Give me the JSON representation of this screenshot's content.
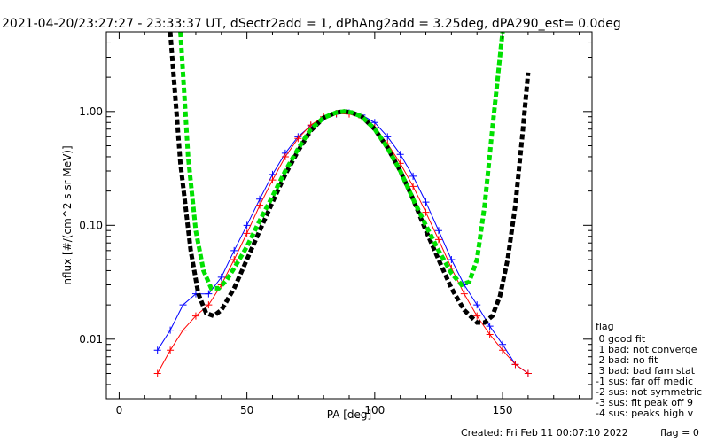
{
  "chart_data": {
    "type": "line",
    "title": "2021-04-20/23:27:27 - 23:33:37 UT, dSectr2add = 1, dPhAng2add = 3.25deg, dPA290_est=    0.0deg",
    "xlabel": "PA [deg]",
    "ylabel": "nflux [#/(cm^2 s sr MeV)]",
    "xlim": [
      -5,
      185
    ],
    "ylim": [
      0.003,
      5.0
    ],
    "yscale": "log",
    "x_ticks": [
      {
        "value": 0,
        "label": "0"
      },
      {
        "value": 50,
        "label": "50"
      },
      {
        "value": 100,
        "label": "100"
      },
      {
        "value": 150,
        "label": "150"
      }
    ],
    "y_ticks": [
      {
        "value": 0.01,
        "label": "0.01"
      },
      {
        "value": 0.1,
        "label": "0.10"
      },
      {
        "value": 1.0,
        "label": "1.00"
      }
    ],
    "grid": false,
    "series": [
      {
        "style": "dashed",
        "color": "#000000",
        "x": [
          20,
          24,
          28,
          31,
          34,
          37,
          40,
          45,
          50,
          55,
          60,
          65,
          70,
          75,
          80,
          85,
          88,
          91,
          95,
          100,
          105,
          110,
          115,
          120,
          125,
          130,
          135,
          140,
          143,
          146,
          149,
          152,
          155,
          158,
          160
        ],
        "y": [
          5.0,
          0.35,
          0.06,
          0.025,
          0.017,
          0.016,
          0.018,
          0.028,
          0.05,
          0.09,
          0.16,
          0.28,
          0.45,
          0.68,
          0.88,
          0.98,
          1.0,
          0.98,
          0.9,
          0.7,
          0.48,
          0.3,
          0.17,
          0.09,
          0.05,
          0.028,
          0.018,
          0.014,
          0.014,
          0.016,
          0.024,
          0.05,
          0.15,
          0.7,
          2.2
        ]
      },
      {
        "style": "dashed",
        "color": "#00e000",
        "x": [
          24,
          27,
          30,
          33,
          36,
          39,
          42,
          45,
          50,
          55,
          60,
          65,
          70,
          75,
          80,
          85,
          88,
          91,
          95,
          100,
          105,
          110,
          115,
          120,
          125,
          130,
          134,
          137,
          140,
          143,
          146,
          150
        ],
        "y": [
          5.0,
          0.4,
          0.09,
          0.04,
          0.028,
          0.028,
          0.033,
          0.042,
          0.065,
          0.11,
          0.18,
          0.3,
          0.47,
          0.7,
          0.88,
          0.98,
          1.0,
          0.98,
          0.9,
          0.7,
          0.48,
          0.3,
          0.17,
          0.1,
          0.06,
          0.038,
          0.03,
          0.032,
          0.05,
          0.15,
          0.7,
          5.0
        ]
      },
      {
        "style": "solid-markers",
        "color": "#0000ff",
        "x": [
          15,
          20,
          25,
          30,
          35,
          40,
          45,
          50,
          55,
          60,
          65,
          70,
          75,
          80,
          85,
          90,
          95,
          100,
          105,
          110,
          115,
          120,
          125,
          130,
          135,
          140,
          145,
          150,
          155,
          160
        ],
        "y": [
          0.008,
          0.012,
          0.02,
          0.025,
          0.025,
          0.035,
          0.06,
          0.1,
          0.17,
          0.28,
          0.43,
          0.6,
          0.75,
          0.88,
          0.95,
          0.97,
          0.93,
          0.8,
          0.6,
          0.42,
          0.27,
          0.16,
          0.09,
          0.05,
          0.03,
          0.02,
          0.013,
          0.009,
          0.006,
          0.005
        ]
      },
      {
        "style": "solid-markers",
        "color": "#ff0000",
        "x": [
          15,
          20,
          25,
          30,
          35,
          40,
          45,
          50,
          55,
          60,
          65,
          70,
          75,
          80,
          85,
          90,
          95,
          100,
          105,
          110,
          115,
          120,
          125,
          130,
          135,
          140,
          145,
          150,
          155,
          160
        ],
        "y": [
          0.005,
          0.008,
          0.012,
          0.016,
          0.02,
          0.03,
          0.05,
          0.085,
          0.15,
          0.25,
          0.4,
          0.58,
          0.76,
          0.9,
          0.96,
          0.95,
          0.88,
          0.72,
          0.52,
          0.35,
          0.22,
          0.13,
          0.075,
          0.042,
          0.025,
          0.016,
          0.011,
          0.008,
          0.006,
          0.005
        ]
      }
    ]
  },
  "legend": {
    "title": "flag",
    "items": [
      {
        "label": " 0 good fit",
        "color": "#000000"
      },
      {
        "label": " 1 bad: not converge",
        "color": "#000000"
      },
      {
        "label": " 2 bad: no fit",
        "color": "#000000"
      },
      {
        "label": " 3 bad: bad fam stat",
        "color": "#000000"
      },
      {
        "label": "-1 sus: far off medic",
        "color": "#000000"
      },
      {
        "label": "-2 sus: not symmetric",
        "color": "#000000"
      },
      {
        "label": "-3 sus: fit peak off 9",
        "color": "#000000"
      },
      {
        "label": "-4 sus: peaks high v",
        "color": "#000000"
      }
    ]
  },
  "footer": {
    "created": "Created: Fri Feb 11 00:07:10 2022",
    "flag": "flag = 0"
  }
}
